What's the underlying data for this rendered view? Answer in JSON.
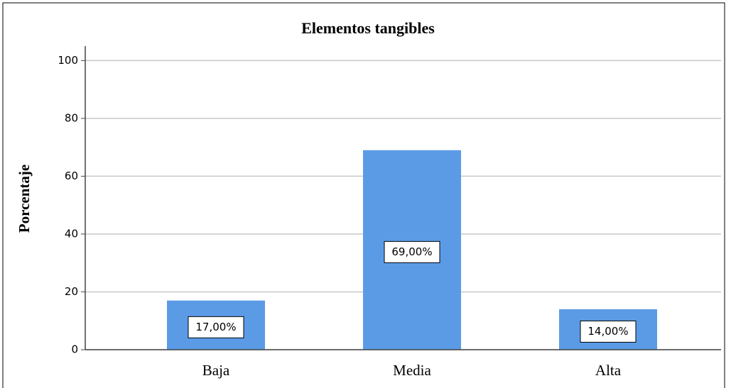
{
  "chart_data": {
    "type": "bar",
    "title": "Elementos tangibles",
    "y_label": "Porcentaje",
    "categories": [
      "Baja",
      "Media",
      "Alta"
    ],
    "values": [
      17,
      69,
      14
    ],
    "value_labels": [
      "17,00%",
      "69,00%",
      "14,00%"
    ],
    "color": "#5b9be6",
    "ylim": [
      0,
      105
    ],
    "yticks": [
      0,
      20,
      40,
      60,
      80,
      100
    ],
    "grid": true
  }
}
